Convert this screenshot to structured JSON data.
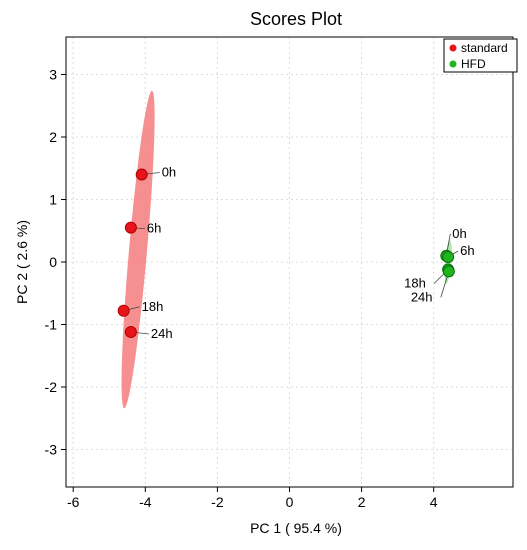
{
  "chart_data": {
    "type": "scatter",
    "title": "Scores Plot",
    "xlabel": "PC 1 ( 95.4 %)",
    "ylabel": "PC 2 ( 2.6 %)",
    "xlim": [
      -6.2,
      6.2
    ],
    "ylim": [
      -3.6,
      3.6
    ],
    "xticks": [
      -6,
      -4,
      -2,
      0,
      2,
      4
    ],
    "yticks": [
      -3,
      -2,
      -1,
      0,
      1,
      2,
      3
    ],
    "grid": true,
    "legend_position": "top-right",
    "series": [
      {
        "name": "standard",
        "color": "#e8141c",
        "ellipse_color": "#f47c7c",
        "points": [
          {
            "label": "0h",
            "x": -4.1,
            "y": 1.4
          },
          {
            "label": "6h",
            "x": -4.4,
            "y": 0.55
          },
          {
            "label": "18h",
            "x": -4.6,
            "y": -0.78
          },
          {
            "label": "24h",
            "x": -4.4,
            "y": -1.12
          }
        ],
        "ellipse": {
          "cx": -4.2,
          "cy": 0.2,
          "rx_data": 0.25,
          "ry_data": 2.55,
          "angle_deg": 5
        }
      },
      {
        "name": "HFD",
        "color": "#1fb51f",
        "ellipse_color": "#9ee69e",
        "points": [
          {
            "label": "0h",
            "x": 4.35,
            "y": 0.1
          },
          {
            "label": "6h",
            "x": 4.4,
            "y": 0.08
          },
          {
            "label": "18h",
            "x": 4.4,
            "y": -0.12
          },
          {
            "label": "24h",
            "x": 4.42,
            "y": -0.15
          }
        ],
        "ellipse": {
          "cx": 4.4,
          "cy": 0.0,
          "rx_data": 0.09,
          "ry_data": 0.35,
          "angle_deg": 5
        }
      }
    ]
  }
}
